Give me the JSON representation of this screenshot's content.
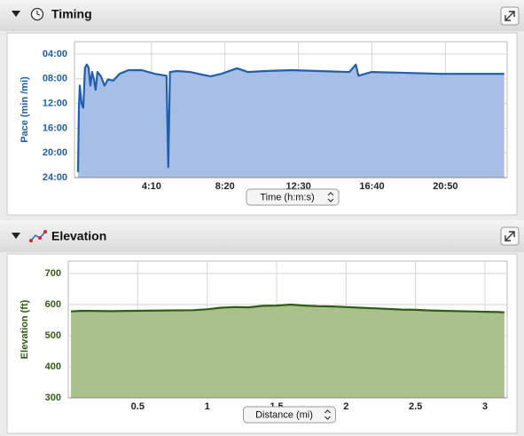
{
  "chart_data": [
    {
      "type": "area",
      "title": "Timing",
      "y_label": "Pace (min /mi)",
      "x_label": "Time (h:m:s)",
      "color": "#1f5fae",
      "fill": "#a7bfe6",
      "grid": true,
      "xlim": [
        -12,
        1460
      ],
      "ylim": [
        24,
        2
      ],
      "xticks": [
        {
          "value": 250,
          "label": "4:10"
        },
        {
          "value": 500,
          "label": "8:20"
        },
        {
          "value": 750,
          "label": "12:30"
        },
        {
          "value": 1000,
          "label": "16:40"
        },
        {
          "value": 1250,
          "label": "20:50"
        }
      ],
      "yticks": [
        {
          "value": 4,
          "label": "04:00"
        },
        {
          "value": 8,
          "label": "08:00"
        },
        {
          "value": 12,
          "label": "12:00"
        },
        {
          "value": 16,
          "label": "16:00"
        },
        {
          "value": 20,
          "label": "20:00"
        },
        {
          "value": 24,
          "label": "24:00"
        }
      ],
      "x": [
        0,
        3,
        6,
        12,
        18,
        24,
        30,
        36,
        42,
        48,
        54,
        60,
        66,
        78,
        90,
        102,
        120,
        141,
        171,
        217,
        262,
        301,
        307,
        313,
        337,
        382,
        421,
        451,
        487,
        541,
        578,
        638,
        728,
        818,
        923,
        945,
        954,
        999,
        1089,
        1239,
        1360,
        1450
      ],
      "values": [
        23.1,
        12.7,
        9.1,
        12,
        12.7,
        6.2,
        5.7,
        6.2,
        9.1,
        6.9,
        8.1,
        9.8,
        6.9,
        7.6,
        9.1,
        8.1,
        8.3,
        7.2,
        6.6,
        6.6,
        7.2,
        7.5,
        22.3,
        6.9,
        6.75,
        6.9,
        7.3,
        7.6,
        7.2,
        6.3,
        6.9,
        6.75,
        6.6,
        6.75,
        6.9,
        5.7,
        7.5,
        6.9,
        7.0,
        7.2,
        7.2,
        7.2
      ]
    },
    {
      "type": "area",
      "title": "Elevation",
      "y_label": "Elevation (ft)",
      "x_label": "Distance (mi)",
      "color": "#2f5d14",
      "fill": "#aac18c",
      "grid": true,
      "xlim": [
        0,
        3.16
      ],
      "ylim": [
        300,
        740
      ],
      "xticks": [
        0.5,
        1,
        1.5,
        2,
        2.5,
        3
      ],
      "yticks": [
        300,
        400,
        500,
        600,
        700
      ],
      "x": [
        0.02,
        0.1,
        0.3,
        0.5,
        0.7,
        0.9,
        1.0,
        1.1,
        1.2,
        1.3,
        1.4,
        1.5,
        1.6,
        1.7,
        1.8,
        1.9,
        2.0,
        2.1,
        2.2,
        2.3,
        2.4,
        2.5,
        2.6,
        2.7,
        2.8,
        2.9,
        3.0,
        3.1,
        3.14
      ],
      "values": [
        578,
        580,
        579,
        580,
        581,
        582,
        585,
        590,
        592,
        591,
        596,
        597,
        600,
        597,
        595,
        594,
        592,
        590,
        588,
        586,
        584,
        583,
        581,
        580,
        579,
        578,
        577,
        576,
        575
      ]
    }
  ]
}
